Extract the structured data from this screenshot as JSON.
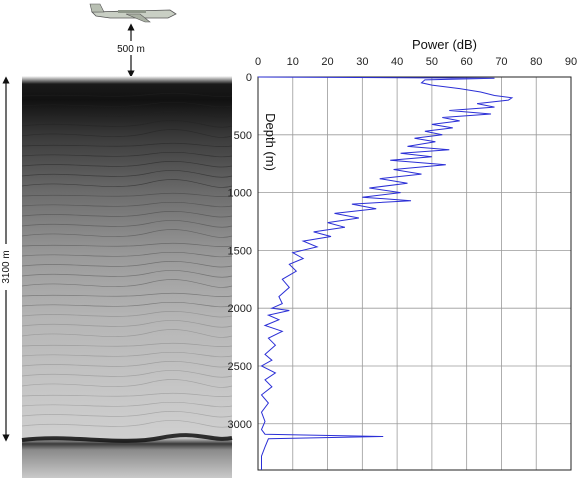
{
  "annotations": {
    "altitude_label": "500 m",
    "ice_thickness_label": "3100 m"
  },
  "chart_data": {
    "type": "line",
    "title": "",
    "xlabel": "Power (dB)",
    "ylabel": "Depth (m)",
    "xlim": [
      0,
      90
    ],
    "ylim": [
      0,
      3400
    ],
    "x_axis_position": "top",
    "y_inverted": true,
    "grid": true,
    "x_ticks": [
      "0",
      "10",
      "20",
      "30",
      "40",
      "50",
      "60",
      "70",
      "80",
      "90"
    ],
    "y_ticks": [
      "0",
      "500",
      "1000",
      "1500",
      "2000",
      "2500",
      "3000"
    ],
    "series": [
      {
        "color": "#2b2fd6",
        "points": [
          [
            0,
            0
          ],
          [
            68,
            10
          ],
          [
            48,
            25
          ],
          [
            47,
            50
          ],
          [
            50,
            70
          ],
          [
            58,
            100
          ],
          [
            64,
            130
          ],
          [
            68,
            160
          ],
          [
            73,
            180
          ],
          [
            72,
            200
          ],
          [
            63,
            230
          ],
          [
            68,
            260
          ],
          [
            55,
            290
          ],
          [
            67,
            320
          ],
          [
            53,
            350
          ],
          [
            58,
            380
          ],
          [
            50,
            410
          ],
          [
            56,
            440
          ],
          [
            48,
            470
          ],
          [
            53,
            500
          ],
          [
            45,
            530
          ],
          [
            51,
            560
          ],
          [
            43,
            600
          ],
          [
            55,
            630
          ],
          [
            41,
            660
          ],
          [
            50,
            690
          ],
          [
            38,
            720
          ],
          [
            54,
            760
          ],
          [
            39,
            800
          ],
          [
            47,
            840
          ],
          [
            35,
            880
          ],
          [
            43,
            920
          ],
          [
            32,
            960
          ],
          [
            41,
            1000
          ],
          [
            30,
            1040
          ],
          [
            44,
            1070
          ],
          [
            27,
            1100
          ],
          [
            34,
            1140
          ],
          [
            22,
            1180
          ],
          [
            29,
            1220
          ],
          [
            20,
            1260
          ],
          [
            25,
            1300
          ],
          [
            16,
            1340
          ],
          [
            21,
            1380
          ],
          [
            13,
            1420
          ],
          [
            17,
            1470
          ],
          [
            10,
            1520
          ],
          [
            13,
            1570
          ],
          [
            9,
            1620
          ],
          [
            11,
            1680
          ],
          [
            7,
            1750
          ],
          [
            9,
            1820
          ],
          [
            6,
            1900
          ],
          [
            7,
            1960
          ],
          [
            4,
            2000
          ],
          [
            9,
            2020
          ],
          [
            3,
            2060
          ],
          [
            6,
            2100
          ],
          [
            2,
            2150
          ],
          [
            7,
            2200
          ],
          [
            3,
            2260
          ],
          [
            5,
            2320
          ],
          [
            2,
            2400
          ],
          [
            4,
            2450
          ],
          [
            1,
            2500
          ],
          [
            5,
            2560
          ],
          [
            2,
            2620
          ],
          [
            4,
            2680
          ],
          [
            1,
            2750
          ],
          [
            3,
            2820
          ],
          [
            1,
            2900
          ],
          [
            2,
            2980
          ],
          [
            1,
            3050
          ],
          [
            2,
            3090
          ],
          [
            36,
            3110
          ],
          [
            3,
            3130
          ],
          [
            2,
            3200
          ],
          [
            1,
            3280
          ],
          [
            1,
            3400
          ]
        ]
      }
    ]
  }
}
